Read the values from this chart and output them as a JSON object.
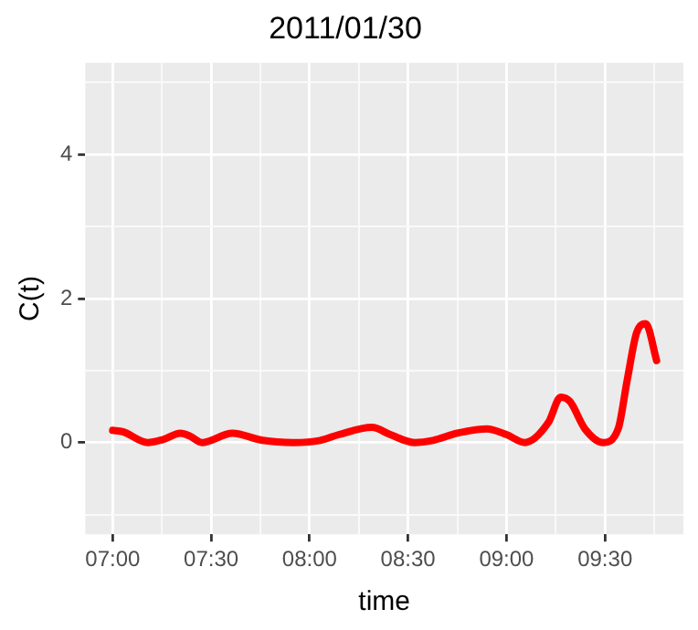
{
  "chart_data": {
    "type": "line",
    "title": "2011/01/30",
    "xlabel": "time",
    "ylabel": "C(t)",
    "x": [
      7.0,
      7.052,
      7.177,
      7.253,
      7.345,
      7.392,
      7.453,
      7.608,
      7.762,
      7.917,
      8.055,
      8.148,
      8.317,
      8.41,
      8.533,
      8.627,
      8.75,
      8.9,
      9.0,
      9.093,
      9.213,
      9.275,
      9.322,
      9.398,
      9.49,
      9.567,
      9.613,
      9.66,
      9.707,
      9.762
    ],
    "series": [
      {
        "color": "#ff0000",
        "values": [
          0.17,
          0.15,
          0.0,
          0.04,
          0.13,
          0.09,
          0.0,
          0.13,
          0.03,
          0.0,
          0.03,
          0.11,
          0.21,
          0.11,
          0.0,
          0.03,
          0.13,
          0.19,
          0.11,
          0.0,
          0.28,
          0.63,
          0.57,
          0.19,
          0.0,
          0.19,
          0.87,
          1.52,
          1.65,
          1.14
        ]
      }
    ],
    "xlim": [
      6.861,
      9.898
    ],
    "ylim": [
      -1.275,
      5.275
    ],
    "xticks": [
      {
        "value": 7,
        "label": "07:00"
      },
      {
        "value": 7.25,
        "label": null
      },
      {
        "value": 7.5,
        "label": "07:30"
      },
      {
        "value": 7.75,
        "label": null
      },
      {
        "value": 8,
        "label": "08:00"
      },
      {
        "value": 8.25,
        "label": null
      },
      {
        "value": 8.5,
        "label": "08:30"
      },
      {
        "value": 8.75,
        "label": null
      },
      {
        "value": 9,
        "label": "09:00"
      },
      {
        "value": 9.25,
        "label": null
      },
      {
        "value": 9.5,
        "label": "09:30"
      },
      {
        "value": 9.75,
        "label": null
      }
    ],
    "yticks": [
      {
        "value": -1,
        "label": null
      },
      0,
      {
        "value": 1,
        "label": null
      },
      2,
      {
        "value": 3,
        "label": null
      },
      4,
      {
        "value": 5,
        "label": null
      }
    ],
    "grid": true,
    "legend": false
  }
}
